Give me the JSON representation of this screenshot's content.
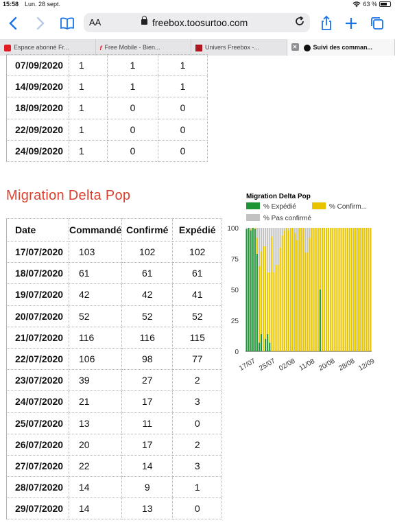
{
  "status_bar": {
    "time": "15:58",
    "date": "Lun. 28 sept.",
    "battery": "63 %"
  },
  "browser": {
    "text_size_label": "AA",
    "url": "freebox.toosurtoo.com",
    "tabs": [
      {
        "label": "Espace abonné Fr...",
        "icon": "free-logo-icon"
      },
      {
        "label": "Free Mobile - Bien...",
        "icon": "free-f-icon"
      },
      {
        "label": "Univers Freebox -...",
        "icon": "univers-freebox-icon"
      },
      {
        "label": "Suivi des comman...",
        "icon": "toosurtoo-icon",
        "active": true
      }
    ]
  },
  "top_table": {
    "rows": [
      [
        "07/09/2020",
        "1",
        "1",
        "1"
      ],
      [
        "14/09/2020",
        "1",
        "1",
        "1"
      ],
      [
        "18/09/2020",
        "1",
        "0",
        "0"
      ],
      [
        "22/09/2020",
        "1",
        "0",
        "0"
      ],
      [
        "24/09/2020",
        "1",
        "0",
        "0"
      ]
    ]
  },
  "section_title": "Migration Delta Pop",
  "main_table": {
    "headers": [
      "Date",
      "Commandé",
      "Confirmé",
      "Expédié"
    ],
    "rows": [
      [
        "17/07/2020",
        "103",
        "102",
        "102"
      ],
      [
        "18/07/2020",
        "61",
        "61",
        "61"
      ],
      [
        "19/07/2020",
        "42",
        "42",
        "41"
      ],
      [
        "20/07/2020",
        "52",
        "52",
        "52"
      ],
      [
        "21/07/2020",
        "116",
        "116",
        "115"
      ],
      [
        "22/07/2020",
        "106",
        "98",
        "77"
      ],
      [
        "23/07/2020",
        "39",
        "27",
        "2"
      ],
      [
        "24/07/2020",
        "21",
        "17",
        "3"
      ],
      [
        "25/07/2020",
        "13",
        "11",
        "0"
      ],
      [
        "26/07/2020",
        "20",
        "17",
        "2"
      ],
      [
        "27/07/2020",
        "22",
        "14",
        "3"
      ],
      [
        "28/07/2020",
        "14",
        "9",
        "1"
      ],
      [
        "29/07/2020",
        "14",
        "13",
        "0"
      ]
    ]
  },
  "colors": {
    "expedie": "#1e9435",
    "confirme": "#e8c400",
    "pas_confirme": "#c2c2c2",
    "title_red": "#d9412e",
    "ios_blue": "#1a73e8"
  },
  "chart_data": {
    "type": "bar",
    "stacked": true,
    "title": "Migration Delta Pop",
    "legend": [
      "% Expédié",
      "% Confirm...",
      "% Pas confirmé"
    ],
    "legend_position": "top",
    "ylim": [
      0,
      100
    ],
    "yticks": [
      "0",
      "25",
      "50",
      "75",
      "100"
    ],
    "xticks": [
      "17/07",
      "25/07",
      "02/08",
      "11/08",
      "20/08",
      "28/08",
      "12/09"
    ],
    "series": [
      {
        "name": "% Expédié",
        "values": [
          99,
          100,
          98,
          100,
          99,
          79,
          7,
          14,
          0,
          10,
          14,
          7,
          0,
          0,
          0,
          0,
          0,
          0,
          0,
          0,
          0,
          0,
          0,
          0,
          0,
          0,
          0,
          0,
          0,
          0,
          0,
          0,
          0,
          0,
          0,
          50,
          0,
          0,
          0,
          0,
          0,
          0,
          0,
          0,
          0,
          0,
          0,
          0,
          0,
          0,
          0,
          0,
          0,
          0,
          0,
          0,
          0,
          0,
          0,
          0
        ]
      },
      {
        "name": "% Confirm...",
        "values": [
          0,
          0,
          1,
          0,
          1,
          13,
          62,
          67,
          85,
          75,
          50,
          57,
          93,
          64,
          70,
          70,
          84,
          94,
          98,
          100,
          98,
          100,
          100,
          96,
          90,
          100,
          100,
          100,
          80,
          80,
          92,
          100,
          100,
          100,
          100,
          50,
          100,
          100,
          100,
          100,
          100,
          100,
          100,
          100,
          100,
          100,
          100,
          100,
          100,
          100,
          100,
          100,
          100,
          100,
          100,
          100,
          100,
          100,
          100,
          100
        ]
      },
      {
        "name": "% Pas confirmé",
        "values": [
          1,
          0,
          1,
          0,
          0,
          8,
          31,
          19,
          15,
          15,
          36,
          36,
          7,
          36,
          30,
          30,
          16,
          6,
          2,
          0,
          2,
          0,
          0,
          4,
          10,
          0,
          0,
          0,
          20,
          20,
          8,
          0,
          0,
          0,
          0,
          0,
          0,
          0,
          0,
          0,
          0,
          0,
          0,
          0,
          0,
          0,
          0,
          0,
          0,
          0,
          0,
          0,
          0,
          0,
          0,
          0,
          0,
          0,
          0,
          0
        ]
      }
    ]
  }
}
